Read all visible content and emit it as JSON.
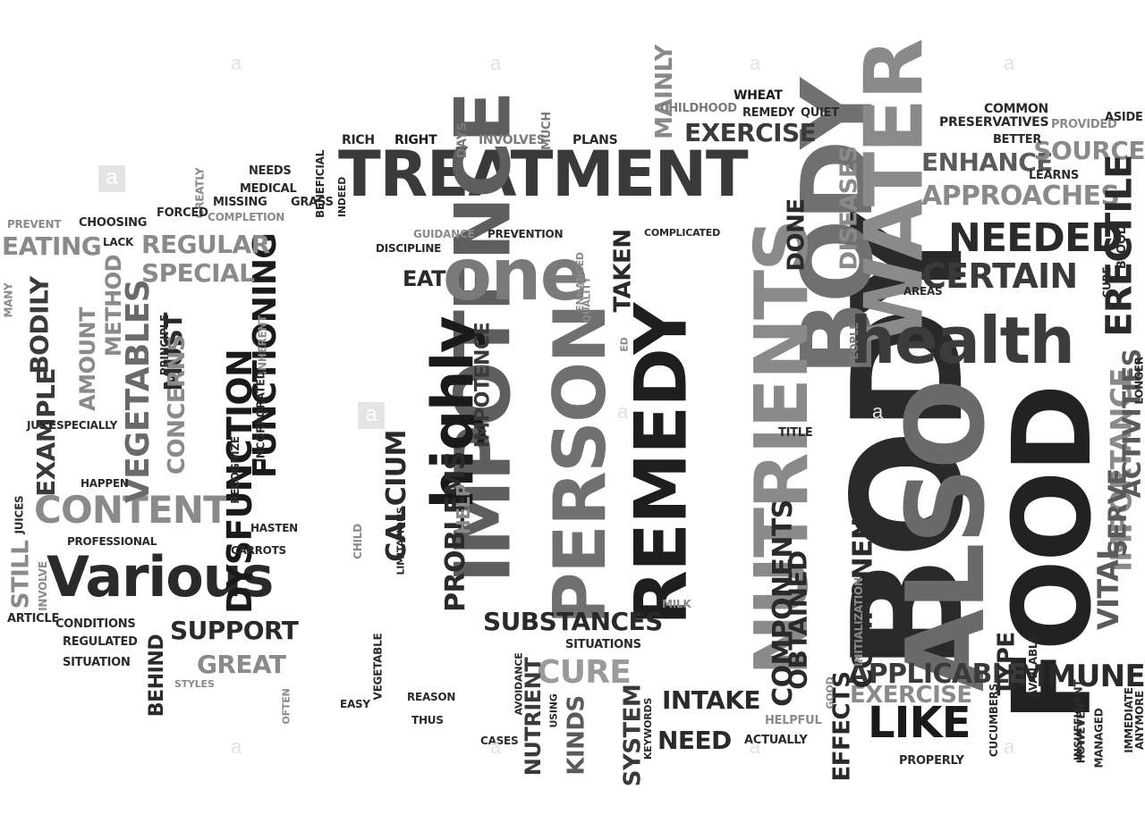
{
  "words": [
    {
      "text": "TREATMENT",
      "color": "#3a3a3a"
    },
    {
      "text": "IMPOTENCE",
      "color": "#5e5e5e"
    },
    {
      "text": "BODY",
      "color": "#2a2a2a"
    },
    {
      "text": "BODY",
      "color": "#707070"
    },
    {
      "text": "FOOD",
      "color": "#222222"
    },
    {
      "text": "ALSO",
      "color": "#6a6a6a"
    },
    {
      "text": "WATER",
      "color": "#8a8a8a"
    },
    {
      "text": "health",
      "color": "#3c3c3c"
    },
    {
      "text": "REMEDY",
      "color": "#1e1e1e"
    },
    {
      "text": "PERSON",
      "color": "#707070"
    },
    {
      "text": "NUTRIENTS",
      "color": "#8a8a8a"
    },
    {
      "text": "highly",
      "color": "#1a1a1a"
    },
    {
      "text": "one",
      "color": "#7a7a7a"
    },
    {
      "text": "Various",
      "color": "#2a2a2a"
    },
    {
      "text": "CONTENT",
      "color": "#8a8a8a"
    },
    {
      "text": "VEGETABLES",
      "color": "#6a6a6a"
    },
    {
      "text": "DYSFUNCTION",
      "color": "#1a1a1a"
    },
    {
      "text": "FUNCTIONING",
      "color": "#1a1a1a"
    },
    {
      "text": "CALCIUM",
      "color": "#2a2a2a"
    },
    {
      "text": "PROBLEMS",
      "color": "#2a2a2a"
    },
    {
      "text": "NEEDED",
      "color": "#2a2a2a"
    },
    {
      "text": "CERTAIN",
      "color": "#3a3a3a"
    },
    {
      "text": "APPROACHES",
      "color": "#8a8a8a"
    },
    {
      "text": "ENHANCE",
      "color": "#5a5a5a"
    },
    {
      "text": "SOURCE",
      "color": "#8a8a8a"
    },
    {
      "text": "ERECTILE",
      "color": "#2a2a2a"
    },
    {
      "text": "IMPORTANCE",
      "color": "#8a8a8a"
    },
    {
      "text": "VITAL",
      "color": "#5a5a5a"
    },
    {
      "text": "SERVE",
      "color": "#5a5a5a"
    },
    {
      "text": "ACTIVITIES",
      "color": "#5a5a5a"
    },
    {
      "text": "IMMUNE",
      "color": "#2a2a2a"
    },
    {
      "text": "LIKE",
      "color": "#1a1a1a"
    },
    {
      "text": "APPLICABLE",
      "color": "#3a3a3a"
    },
    {
      "text": "EXERCISE",
      "color": "#8a8a8a"
    },
    {
      "text": "EXERCISE",
      "color": "#3a3a3a"
    },
    {
      "text": "COMPONENTS",
      "color": "#2a2a2a"
    },
    {
      "text": "COMPONENT",
      "color": "#2a2a2a"
    },
    {
      "text": "OBTAINED",
      "color": "#2a2a2a"
    },
    {
      "text": "SUBSTANCES",
      "color": "#2a2a2a"
    },
    {
      "text": "CURE",
      "color": "#9a9a9a"
    },
    {
      "text": "SUPPORT",
      "color": "#2a2a2a"
    },
    {
      "text": "GREAT",
      "color": "#8a8a8a"
    },
    {
      "text": "REGULAR",
      "color": "#8a8a8a"
    },
    {
      "text": "SPECIAL",
      "color": "#8a8a8a"
    },
    {
      "text": "EATING",
      "color": "#8a8a8a"
    },
    {
      "text": "MUST",
      "color": "#2a2a2a"
    },
    {
      "text": "CONCERNS",
      "color": "#8a8a8a"
    },
    {
      "text": "EXAMPLE",
      "color": "#3a3a3a"
    },
    {
      "text": "BODILY",
      "color": "#3a3a3a"
    },
    {
      "text": "AMOUNT",
      "color": "#8a8a8a"
    },
    {
      "text": "METHOD",
      "color": "#8a8a8a"
    },
    {
      "text": "STILL",
      "color": "#8a8a8a"
    },
    {
      "text": "DISEASES",
      "color": "#8a8a8a"
    },
    {
      "text": "DONE",
      "color": "#2a2a2a"
    },
    {
      "text": "MAINLY",
      "color": "#8a8a8a"
    },
    {
      "text": "TAKEN",
      "color": "#2a2a2a"
    },
    {
      "text": "EAT",
      "color": "#2a2a2a"
    },
    {
      "text": "INTAKE",
      "color": "#2a2a2a"
    },
    {
      "text": "NEED",
      "color": "#2a2a2a"
    },
    {
      "text": "KINDS",
      "color": "#5a5a5a"
    },
    {
      "text": "SYSTEM",
      "color": "#3a3a3a"
    },
    {
      "text": "NUTRIENT",
      "color": "#3a3a3a"
    },
    {
      "text": "IMPOTENCE",
      "color": "#3a3a3a"
    },
    {
      "text": "HELP",
      "color": "#8a8a8a"
    },
    {
      "text": "EFFECTS",
      "color": "#2a2a2a"
    },
    {
      "text": "TYPE",
      "color": "#2a2a2a"
    },
    {
      "text": "BEHIND",
      "color": "#2a2a2a"
    },
    {
      "text": "RICH",
      "color": "#2a2a2a"
    },
    {
      "text": "RIGHT",
      "color": "#1a1a1a"
    },
    {
      "text": "DAYS",
      "color": "#7a7a7a"
    },
    {
      "text": "INVOLVES",
      "color": "#7a7a7a"
    },
    {
      "text": "MUCH",
      "color": "#7a7a7a"
    },
    {
      "text": "PLANS",
      "color": "#2a2a2a"
    },
    {
      "text": "CHILDHOOD",
      "color": "#7a7a7a"
    },
    {
      "text": "WHEAT",
      "color": "#1a1a1a"
    },
    {
      "text": "REMEDY",
      "color": "#2a2a2a"
    },
    {
      "text": "QUIET",
      "color": "#2a2a2a"
    },
    {
      "text": "PRESERVATIVES",
      "color": "#2a2a2a"
    },
    {
      "text": "PROVIDED",
      "color": "#8a8a8a"
    },
    {
      "text": "ASIDE",
      "color": "#2a2a2a"
    },
    {
      "text": "COMMON",
      "color": "#2a2a2a"
    },
    {
      "text": "BETTER",
      "color": "#2a2a2a"
    },
    {
      "text": "LEARNS",
      "color": "#2a2a2a"
    },
    {
      "text": "BLOOD",
      "color": "#2a2a2a"
    },
    {
      "text": "CURE",
      "color": "#2a2a2a"
    },
    {
      "text": "AREAS",
      "color": "#2a2a2a"
    },
    {
      "text": "PEOPLE",
      "color": "#7a7a7a"
    },
    {
      "text": "LONGER",
      "color": "#2a2a2a"
    },
    {
      "text": "TITLE",
      "color": "#2a2a2a"
    },
    {
      "text": "NEEDS",
      "color": "#2a2a2a"
    },
    {
      "text": "MEDICAL",
      "color": "#2a2a2a"
    },
    {
      "text": "MISSING",
      "color": "#2a2a2a"
    },
    {
      "text": "GRASS",
      "color": "#2a2a2a"
    },
    {
      "text": "BENEFICIAL",
      "color": "#2a2a2a"
    },
    {
      "text": "INDEED",
      "color": "#2a2a2a"
    },
    {
      "text": "COMPLETION",
      "color": "#8a8a8a"
    },
    {
      "text": "GREATLY",
      "color": "#8a8a8a"
    },
    {
      "text": "FORCED",
      "color": "#2a2a2a"
    },
    {
      "text": "CHOOSING",
      "color": "#2a2a2a"
    },
    {
      "text": "PREVENT",
      "color": "#8a8a8a"
    },
    {
      "text": "LACK",
      "color": "#2a2a2a"
    },
    {
      "text": "GUIDANCE",
      "color": "#8a8a8a"
    },
    {
      "text": "PREVENTION",
      "color": "#2a2a2a"
    },
    {
      "text": "COMPLICATED",
      "color": "#2a2a2a"
    },
    {
      "text": "DISCIPLINE",
      "color": "#2a2a2a"
    },
    {
      "text": "ENHANCED",
      "color": "#8a8a8a"
    },
    {
      "text": "QUALITY",
      "color": "#8a8a8a"
    },
    {
      "text": "ED",
      "color": "#8a8a8a"
    },
    {
      "text": "MANY",
      "color": "#8a8a8a"
    },
    {
      "text": "PRINCIPLE",
      "color": "#2a2a2a"
    },
    {
      "text": "INHERENT",
      "color": "#8a8a8a"
    },
    {
      "text": "JUST",
      "color": "#2a2a2a"
    },
    {
      "text": "ESPECIALLY",
      "color": "#2a2a2a"
    },
    {
      "text": "INCORPORATED",
      "color": "#2a2a2a"
    },
    {
      "text": "RECOGNIZE",
      "color": "#2a2a2a"
    },
    {
      "text": "HAPPEN",
      "color": "#2a2a2a"
    },
    {
      "text": "HASTEN",
      "color": "#2a2a2a"
    },
    {
      "text": "JUICES",
      "color": "#2a2a2a"
    },
    {
      "text": "LIMITATIONS",
      "color": "#2a2a2a"
    },
    {
      "text": "CHILD",
      "color": "#8a8a8a"
    },
    {
      "text": "CARROTS",
      "color": "#2a2a2a"
    },
    {
      "text": "PROFESSIONAL",
      "color": "#2a2a2a"
    },
    {
      "text": "INVOLVE",
      "color": "#8a8a8a"
    },
    {
      "text": "ARTICLE",
      "color": "#2a2a2a"
    },
    {
      "text": "CONDITIONS",
      "color": "#2a2a2a"
    },
    {
      "text": "REGULATED",
      "color": "#2a2a2a"
    },
    {
      "text": "SITUATION",
      "color": "#2a2a2a"
    },
    {
      "text": "SITUATIONS",
      "color": "#2a2a2a"
    },
    {
      "text": "VEGETABLE",
      "color": "#2a2a2a"
    },
    {
      "text": "STYLES",
      "color": "#8a8a8a"
    },
    {
      "text": "OFTEN",
      "color": "#8a8a8a"
    },
    {
      "text": "EASY",
      "color": "#2a2a2a"
    },
    {
      "text": "REASON",
      "color": "#2a2a2a"
    },
    {
      "text": "THUS",
      "color": "#2a2a2a"
    },
    {
      "text": "CASES",
      "color": "#2a2a2a"
    },
    {
      "text": "AVOIDANCE",
      "color": "#2a2a2a"
    },
    {
      "text": "USING",
      "color": "#2a2a2a"
    },
    {
      "text": "KEYWORDS",
      "color": "#2a2a2a"
    },
    {
      "text": "MILK",
      "color": "#8a8a8a"
    },
    {
      "text": "ACTUALLY",
      "color": "#2a2a2a"
    },
    {
      "text": "HELPFUL",
      "color": "#8a8a8a"
    },
    {
      "text": "PROPERLY",
      "color": "#2a2a2a"
    },
    {
      "text": "CUCUMBERS",
      "color": "#2a2a2a"
    },
    {
      "text": "INITIALIZATION",
      "color": "#8a8a8a"
    },
    {
      "text": "GOOD",
      "color": "#8a8a8a"
    },
    {
      "text": "AVAILABLE",
      "color": "#2a2a2a"
    },
    {
      "text": "INSUFFICIENT",
      "color": "#2a2a2a"
    },
    {
      "text": "HOWEVER",
      "color": "#2a2a2a"
    },
    {
      "text": "MANAGED",
      "color": "#2a2a2a"
    },
    {
      "text": "IMMEDIATE",
      "color": "#2a2a2a"
    },
    {
      "text": "ANYMORE",
      "color": "#2a2a2a"
    }
  ],
  "watermark": {
    "glyph": "a",
    "color": "#e2e2e2"
  }
}
